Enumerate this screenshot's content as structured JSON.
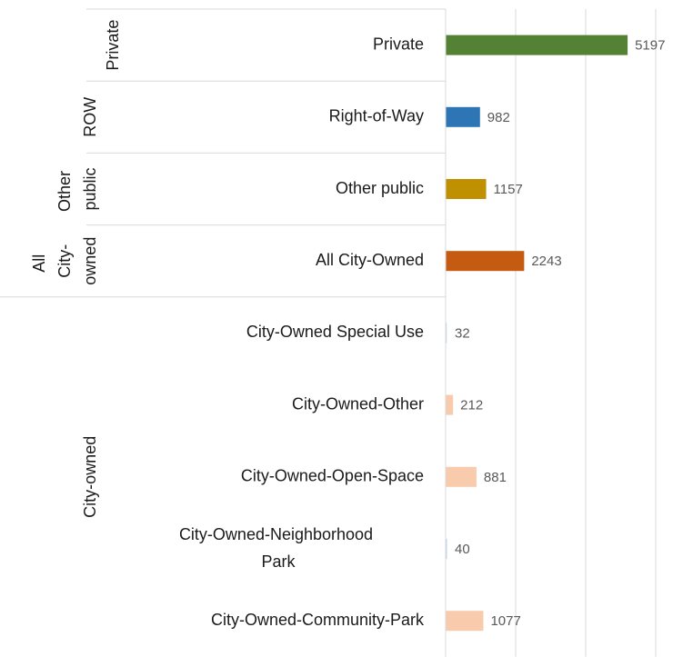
{
  "chart_data": {
    "type": "bar",
    "orientation": "horizontal",
    "categories": [
      "Private",
      "Right-of-Way",
      "Other public",
      "All City-Owned",
      "City-Owned Special Use",
      "City-Owned-Other",
      "City-Owned-Open-Space",
      "City-Owned-Neighborhood Park",
      "City-Owned-Community-Park"
    ],
    "values": [
      5197,
      982,
      1157,
      2243,
      32,
      212,
      881,
      40,
      1077
    ],
    "colors": [
      "#548235",
      "#2e75b6",
      "#bf9000",
      "#c55a11",
      "#bdd7ee",
      "#f8cbad",
      "#f8cbad",
      "#bdd7ee",
      "#f8cbad"
    ],
    "groups": [
      {
        "name": "Private",
        "size": 1
      },
      {
        "name": "ROW",
        "size": 1
      },
      {
        "name": "Other public",
        "size": 1
      },
      {
        "name": "All City-owned",
        "size": 1
      },
      {
        "name": "City-owned",
        "size": 5
      }
    ],
    "xlim": [
      0,
      7000
    ],
    "xticks": [
      0,
      2000,
      4000,
      6000
    ],
    "grid": true
  }
}
